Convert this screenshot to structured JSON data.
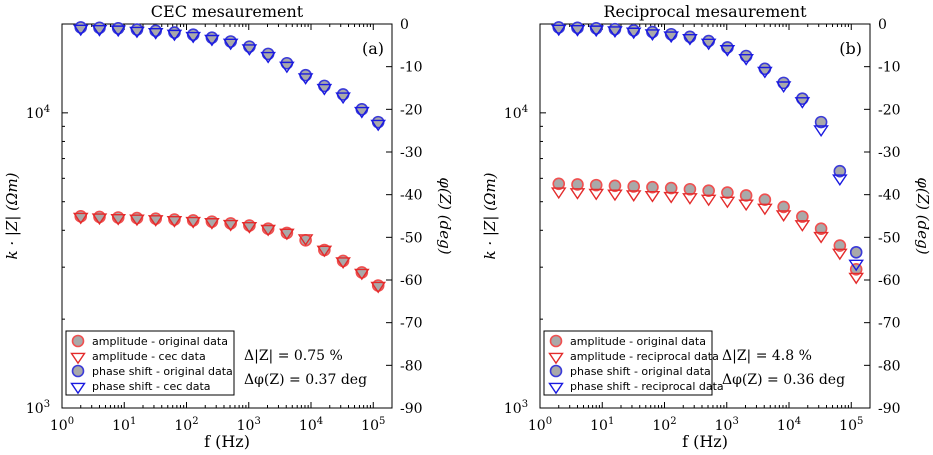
{
  "chart_data": [
    {
      "type": "scatter",
      "title": "CEC mesaurement",
      "panel_label": "(a)",
      "xlabel": "f (Hz)",
      "ylabel_left": "k · |Z| (Ωm)",
      "ylabel_right": "φ(Z) (deg)",
      "x_scale": "log",
      "y_left_scale": "log",
      "xlim": [
        1,
        200000
      ],
      "ylim_left": [
        1000,
        20000
      ],
      "ylim_right": [
        -90,
        0
      ],
      "x_ticks": [
        {
          "v": 1,
          "e": "0"
        },
        {
          "v": 10,
          "e": "1"
        },
        {
          "v": 100,
          "e": "2"
        },
        {
          "v": 1000,
          "e": "3"
        },
        {
          "v": 10000,
          "e": "4"
        },
        {
          "v": 100000,
          "e": "5"
        }
      ],
      "y_left_ticks": [
        {
          "v": 1000,
          "e": "3"
        },
        {
          "v": 10000,
          "e": "4"
        }
      ],
      "y_right_ticks": [
        0,
        -10,
        -20,
        -30,
        -40,
        -50,
        -60,
        -70,
        -80,
        -90
      ],
      "x": [
        2,
        4,
        8,
        16,
        32,
        64,
        128,
        256,
        512,
        1024,
        2048,
        4096,
        8192,
        16384,
        32768,
        65536,
        120000
      ],
      "series": [
        {
          "name": "amplitude - original data",
          "axis": "left",
          "marker": "circle",
          "color": "#f05050",
          "values": [
            4460,
            4440,
            4420,
            4400,
            4380,
            4350,
            4320,
            4280,
            4220,
            4150,
            4050,
            3920,
            3700,
            3430,
            3150,
            2880,
            2600
          ]
        },
        {
          "name": "amplitude - cec data",
          "axis": "left",
          "marker": "triangle",
          "color": "#e32b2b",
          "values": [
            4470,
            4450,
            4430,
            4410,
            4390,
            4360,
            4330,
            4290,
            4230,
            4160,
            4070,
            3950,
            3780,
            3460,
            3160,
            2890,
            2610
          ]
        },
        {
          "name": "phase shift - original data",
          "axis": "right",
          "marker": "circle",
          "color": "#3b3bd8",
          "values": [
            -0.8,
            -0.9,
            -1.0,
            -1.3,
            -1.6,
            -2.0,
            -2.5,
            -3.2,
            -4.1,
            -5.3,
            -7.0,
            -9.2,
            -12.0,
            -14.5,
            -16.5,
            -20.0,
            -23.0
          ]
        },
        {
          "name": "phase shift - cec data",
          "axis": "right",
          "marker": "triangle",
          "color": "#1a1ae0",
          "values": [
            -0.9,
            -1.0,
            -1.1,
            -1.4,
            -1.7,
            -2.1,
            -2.6,
            -3.3,
            -4.2,
            -5.5,
            -7.3,
            -9.6,
            -12.3,
            -14.8,
            -16.8,
            -20.2,
            -23.2
          ]
        }
      ],
      "annotation": [
        "Δ|Z| = 0.75 %",
        "Δφ(Z) = 0.37 deg"
      ],
      "legend": "bottom-left"
    },
    {
      "type": "scatter",
      "title": "Reciprocal mesaurement",
      "panel_label": "(b)",
      "xlabel": "f (Hz)",
      "ylabel_left": "k · |Z| (Ωm)",
      "ylabel_right": "φ(Z) (deg)",
      "x_scale": "log",
      "y_left_scale": "log",
      "xlim": [
        1,
        200000
      ],
      "ylim_left": [
        1000,
        20000
      ],
      "ylim_right": [
        -90,
        0
      ],
      "x_ticks": [
        {
          "v": 1,
          "e": "0"
        },
        {
          "v": 10,
          "e": "1"
        },
        {
          "v": 100,
          "e": "2"
        },
        {
          "v": 1000,
          "e": "3"
        },
        {
          "v": 10000,
          "e": "4"
        },
        {
          "v": 100000,
          "e": "5"
        }
      ],
      "y_left_ticks": [
        {
          "v": 1000,
          "e": "3"
        },
        {
          "v": 10000,
          "e": "4"
        }
      ],
      "y_right_ticks": [
        0,
        -10,
        -20,
        -30,
        -40,
        -50,
        -60,
        -70,
        -80,
        -90
      ],
      "x": [
        2,
        4,
        8,
        16,
        32,
        64,
        128,
        256,
        512,
        1024,
        2048,
        4096,
        8192,
        16384,
        32768,
        65536,
        120000
      ],
      "series": [
        {
          "name": "amplitude - original data",
          "axis": "left",
          "marker": "circle",
          "color": "#f05050",
          "values": [
            5750,
            5720,
            5690,
            5660,
            5630,
            5600,
            5560,
            5510,
            5450,
            5370,
            5250,
            5080,
            4800,
            4450,
            4050,
            3550,
            2950
          ]
        },
        {
          "name": "amplitude - reciprocal data",
          "axis": "left",
          "marker": "triangle",
          "color": "#e32b2b",
          "values": [
            5450,
            5420,
            5390,
            5360,
            5330,
            5300,
            5260,
            5210,
            5150,
            5070,
            4960,
            4800,
            4560,
            4220,
            3850,
            3380,
            2800
          ]
        },
        {
          "name": "phase shift - original data",
          "axis": "right",
          "marker": "circle",
          "color": "#3b3bd8",
          "values": [
            -0.8,
            -0.9,
            -1.0,
            -1.2,
            -1.5,
            -1.9,
            -2.4,
            -3.0,
            -4.0,
            -5.5,
            -7.5,
            -10.5,
            -13.8,
            -17.5,
            -23.0,
            -34.5,
            -53.5
          ]
        },
        {
          "name": "phase shift - reciprocal data",
          "axis": "right",
          "marker": "triangle",
          "color": "#1a1ae0",
          "values": [
            -0.9,
            -1.0,
            -1.1,
            -1.3,
            -1.6,
            -2.0,
            -2.5,
            -3.1,
            -4.2,
            -5.7,
            -7.8,
            -10.8,
            -14.2,
            -17.9,
            -24.5,
            -36.0,
            -56.0
          ]
        }
      ],
      "annotation": [
        "Δ|Z| = 4.8 %",
        "Δφ(Z) = 0.36 deg"
      ],
      "legend": "bottom-left"
    }
  ]
}
